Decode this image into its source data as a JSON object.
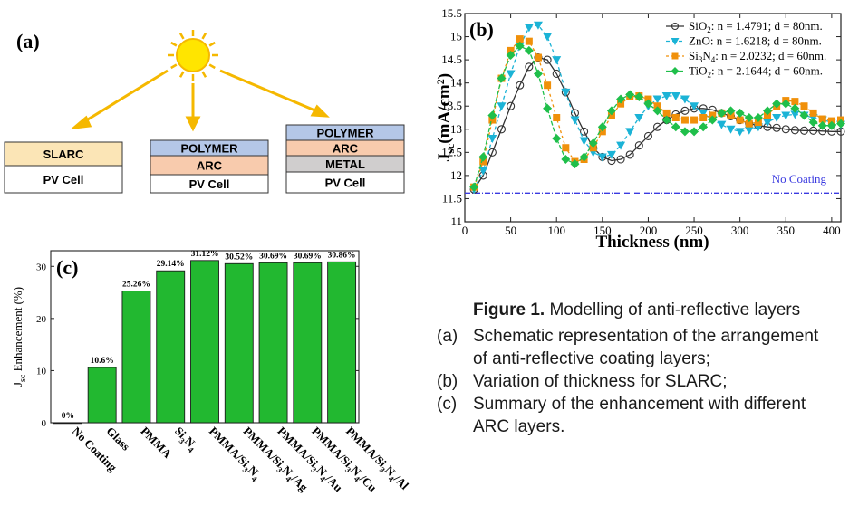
{
  "panel_a": {
    "label": "(a)",
    "boxes": {
      "left": [
        "SLARC",
        "PV Cell"
      ],
      "middle": [
        "POLYMER",
        "ARC",
        "PV Cell"
      ],
      "right": [
        "POLYMER",
        "ARC",
        "METAL",
        "PV Cell"
      ]
    },
    "colors": {
      "sun": "#FFE500",
      "sun_ray": "#F5B800",
      "arrow": "#F5B800",
      "slarc": "#FBE5B6",
      "polymer": "#B4C7E7",
      "arc": "#F8CBAD",
      "metal": "#D0CECE",
      "pv_cell": "#FFFFFF"
    }
  },
  "chart_data": [
    {
      "type": "line",
      "panel_label": "(b)",
      "xlabel": "Thickness (nm)",
      "ylabel": "Jsc(mA/cm²)",
      "ylabel_parts": {
        "main": "J",
        "sub": "sc",
        "unit": "(mA/cm",
        "sup": "2",
        "close": ")"
      },
      "xlim": [
        0,
        410
      ],
      "ylim": [
        11,
        15.5
      ],
      "xticks": [
        0,
        50,
        100,
        150,
        200,
        250,
        300,
        350,
        400
      ],
      "yticks": [
        11,
        11.5,
        12,
        12.5,
        13,
        13.5,
        14,
        14.5,
        15,
        15.5
      ],
      "x": [
        10,
        20,
        30,
        40,
        50,
        60,
        70,
        80,
        90,
        100,
        110,
        120,
        130,
        140,
        150,
        160,
        170,
        180,
        190,
        200,
        210,
        220,
        230,
        240,
        250,
        260,
        270,
        280,
        290,
        300,
        310,
        320,
        330,
        340,
        350,
        360,
        370,
        380,
        390,
        400,
        410
      ],
      "reference": {
        "name": "No Coating",
        "value": 11.62,
        "color": "#3A3AE0"
      },
      "series": [
        {
          "name": "SiO₂: n = 1.4791; d = 80nm.",
          "parts": [
            "SiO",
            "2",
            ": n = 1.4791; d = 80nm."
          ],
          "color": "#333333",
          "marker": "circle",
          "values": [
            11.7,
            12.0,
            12.5,
            13.0,
            13.5,
            13.95,
            14.35,
            14.55,
            14.5,
            14.2,
            13.8,
            13.35,
            12.95,
            12.6,
            12.4,
            12.32,
            12.35,
            12.45,
            12.65,
            12.85,
            13.05,
            13.2,
            13.32,
            13.4,
            13.45,
            13.45,
            13.42,
            13.35,
            13.28,
            13.2,
            13.12,
            13.08,
            13.05,
            13.03,
            13.0,
            12.98,
            12.97,
            12.97,
            12.96,
            12.95,
            12.95
          ]
        },
        {
          "name": "ZnO: n = 1.6218; d = 80nm.",
          "parts": [
            "ZnO: n = 1.6218; d = 80nm."
          ],
          "color": "#1BB3D6",
          "marker": "triangle-down",
          "values": [
            11.7,
            12.1,
            12.8,
            13.5,
            14.2,
            14.8,
            15.2,
            15.25,
            15.0,
            14.5,
            13.8,
            13.2,
            12.75,
            12.5,
            12.4,
            12.45,
            12.65,
            12.95,
            13.25,
            13.5,
            13.65,
            13.72,
            13.72,
            13.65,
            13.5,
            13.35,
            13.2,
            13.1,
            13.0,
            12.95,
            12.98,
            13.05,
            13.15,
            13.25,
            13.3,
            13.32,
            13.3,
            13.25,
            13.2,
            13.15,
            13.1
          ]
        },
        {
          "name": "Si₃N₄: n = 2.0232; d = 60nm.",
          "parts": [
            "Si",
            "3",
            "N",
            "4",
            ": n = 2.0232; d = 60nm."
          ],
          "color": "#F0900A",
          "marker": "square",
          "values": [
            11.75,
            12.3,
            13.2,
            14.1,
            14.7,
            14.95,
            14.9,
            14.55,
            13.95,
            13.25,
            12.6,
            12.3,
            12.35,
            12.6,
            12.95,
            13.3,
            13.55,
            13.7,
            13.72,
            13.65,
            13.5,
            13.35,
            13.25,
            13.2,
            13.2,
            13.25,
            13.3,
            13.35,
            13.3,
            13.2,
            13.12,
            13.15,
            13.3,
            13.5,
            13.62,
            13.6,
            13.5,
            13.35,
            13.22,
            13.18,
            13.2
          ]
        },
        {
          "name": "TiO₂: n = 2.1644; d = 60nm.",
          "parts": [
            "TiO",
            "2",
            ": n = 2.1644; d = 60nm."
          ],
          "color": "#1FBF4A",
          "marker": "diamond",
          "values": [
            11.75,
            12.4,
            13.3,
            14.1,
            14.6,
            14.8,
            14.7,
            14.2,
            13.45,
            12.8,
            12.35,
            12.25,
            12.4,
            12.7,
            13.05,
            13.4,
            13.65,
            13.75,
            13.7,
            13.55,
            13.4,
            13.2,
            13.05,
            12.95,
            12.95,
            13.05,
            13.2,
            13.35,
            13.4,
            13.35,
            13.25,
            13.25,
            13.4,
            13.55,
            13.55,
            13.45,
            13.3,
            13.15,
            13.08,
            13.08,
            13.12
          ]
        }
      ]
    },
    {
      "type": "bar",
      "panel_label": "(c)",
      "ylabel": "Jsc Enhancement (%)",
      "ylabel_parts": {
        "main": "J",
        "sub": "sc",
        "rest": " Enhancement (%)"
      },
      "ylim": [
        0,
        33
      ],
      "yticks": [
        0,
        10,
        20,
        30
      ],
      "bar_color": "#22B830",
      "categories": [
        "No Coating",
        "Glass",
        "PMMA",
        "Si₃N₄",
        "PMMA/Si₃N₄",
        "PMMA/Si₃N₄/Ag",
        "PMMA/Si₃N₄/Au",
        "PMMA/Si₃N₄/Cu",
        "PMMA/Si₃N₄/Al"
      ],
      "category_parts": [
        [
          [
            "No Coating",
            ""
          ]
        ],
        [
          [
            "Glass",
            ""
          ]
        ],
        [
          [
            "PMMA",
            ""
          ]
        ],
        [
          [
            "Si",
            ""
          ],
          [
            "3",
            "sub"
          ],
          [
            "N",
            ""
          ],
          [
            "4",
            "sub"
          ]
        ],
        [
          [
            "PMMA/Si",
            ""
          ],
          [
            "3",
            "sub"
          ],
          [
            "N",
            ""
          ],
          [
            "4",
            "sub"
          ]
        ],
        [
          [
            "PMMA/Si",
            ""
          ],
          [
            "3",
            "sub"
          ],
          [
            "N",
            ""
          ],
          [
            "4",
            "sub"
          ],
          [
            "/Ag",
            ""
          ]
        ],
        [
          [
            "PMMA/Si",
            ""
          ],
          [
            "3",
            "sub"
          ],
          [
            "N",
            ""
          ],
          [
            "4",
            "sub"
          ],
          [
            "/Au",
            ""
          ]
        ],
        [
          [
            "PMMA/Si",
            ""
          ],
          [
            "3",
            "sub"
          ],
          [
            "N",
            ""
          ],
          [
            "4",
            "sub"
          ],
          [
            "/Cu",
            ""
          ]
        ],
        [
          [
            "PMMA/Si",
            ""
          ],
          [
            "3",
            "sub"
          ],
          [
            "N",
            ""
          ],
          [
            "4",
            "sub"
          ],
          [
            "/Al",
            ""
          ]
        ]
      ],
      "values": [
        0,
        10.6,
        25.26,
        29.14,
        31.12,
        30.52,
        30.69,
        30.69,
        30.86
      ],
      "labels": [
        "0%",
        "10.6%",
        "25.26%",
        "29.14%",
        "31.12%",
        "30.52%",
        "30.69%",
        "30.69%",
        "30.86%"
      ]
    }
  ],
  "caption": {
    "title_bold": "Figure 1.",
    "title_rest": " Modelling of anti-reflective layers",
    "items": [
      {
        "marker": "(a)",
        "lines": [
          "Schematic representation of the arrangement",
          "of anti-reflective coating layers;"
        ]
      },
      {
        "marker": "(b)",
        "lines": [
          "Variation of thickness for SLARC;"
        ]
      },
      {
        "marker": "(c)",
        "lines": [
          "Summary of the enhancement with different",
          "ARC layers."
        ]
      }
    ]
  }
}
